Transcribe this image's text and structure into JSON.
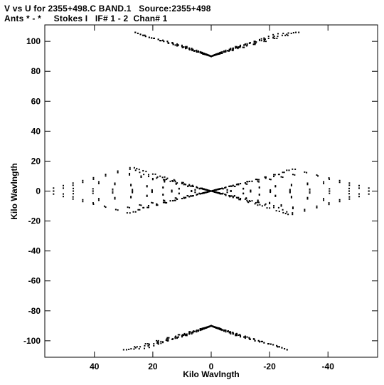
{
  "header": {
    "line1": "V vs U for 2355+498.C BAND.1   Source:2355+498",
    "line2": "Ants * - *     Stokes I   IF# 1 - 2  Chan# 1"
  },
  "chart_data": {
    "type": "scatter",
    "title": "V vs U for 2355+498.C BAND.1   Source:2355+498",
    "subtitle": "Ants * - *     Stokes I   IF# 1 - 2  Chan# 1",
    "xlabel": "Kilo Wavlngth",
    "ylabel": "Kilo Wavlngth",
    "xlim": [
      57,
      -57
    ],
    "ylim": [
      -111,
      111
    ],
    "x_reversed": true,
    "xticks": [
      40,
      20,
      0,
      -20,
      -40
    ],
    "yticks": [
      100,
      80,
      60,
      40,
      20,
      0,
      -20,
      -40,
      -60,
      -80,
      -100
    ],
    "grid": false,
    "legend": "none",
    "point_color": "#000000",
    "arms": [
      {
        "name": "north",
        "points": [
          [
            0.0,
            90.0
          ],
          [
            -7.5,
            95.0
          ],
          [
            -15.0,
            100.0
          ],
          [
            -22.0,
            105.0
          ],
          [
            -30.0,
            106.0
          ],
          [
            7.5,
            95.0
          ],
          [
            15.0,
            100.0
          ],
          [
            22.0,
            103.0
          ],
          [
            26.0,
            106.0
          ]
        ]
      },
      {
        "name": "south",
        "points": [
          [
            0.0,
            -90.0
          ],
          [
            7.5,
            -96.0
          ],
          [
            15.0,
            -100.0
          ],
          [
            22.0,
            -103.0
          ],
          [
            29.0,
            -106.0
          ],
          [
            -7.5,
            -96.0
          ],
          [
            -15.0,
            -100.0
          ],
          [
            -22.0,
            -103.0
          ],
          [
            -26.0,
            -106.0
          ]
        ]
      },
      {
        "name": "east-upper",
        "points": [
          [
            0.0,
            0.0
          ],
          [
            -12.0,
            6.0
          ],
          [
            -22.0,
            10.0
          ],
          [
            -28.0,
            15.0
          ],
          [
            -42.0,
            7.0
          ],
          [
            -54.0,
            0.0
          ]
        ]
      },
      {
        "name": "east-lower",
        "points": [
          [
            0.0,
            0.0
          ],
          [
            -12.0,
            -6.0
          ],
          [
            -22.0,
            -10.0
          ],
          [
            -27.0,
            -15.0
          ],
          [
            -42.0,
            -7.0
          ],
          [
            -54.0,
            0.0
          ]
        ]
      },
      {
        "name": "west-upper",
        "points": [
          [
            0.0,
            0.0
          ],
          [
            12.0,
            6.0
          ],
          [
            24.0,
            14.0
          ],
          [
            27.0,
            16.0
          ],
          [
            42.0,
            8.0
          ],
          [
            54.0,
            2.0
          ]
        ]
      },
      {
        "name": "west-lower",
        "points": [
          [
            0.0,
            0.0
          ],
          [
            12.0,
            -6.0
          ],
          [
            22.0,
            -10.0
          ],
          [
            27.0,
            -15.0
          ],
          [
            42.0,
            -8.0
          ],
          [
            54.0,
            -2.0
          ]
        ]
      }
    ]
  }
}
